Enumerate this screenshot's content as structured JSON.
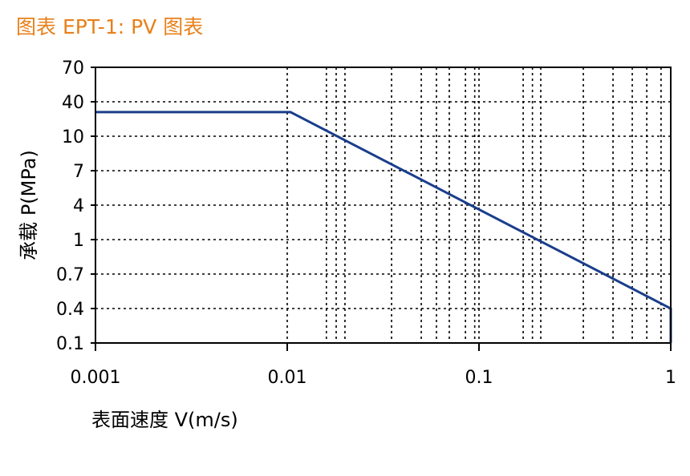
{
  "chart_data": {
    "type": "line",
    "title": "图表 EPT-1: PV 图表",
    "xlabel": "表面速度 V(m/s)",
    "ylabel": "承载 P(MPa)",
    "x_scale": "log",
    "y_scale": "categorical-ticks",
    "xlim": [
      0.001,
      1
    ],
    "x_ticks": [
      "0.001",
      "0.01",
      "0.1",
      "1"
    ],
    "x_ticks_values": [
      0.001,
      0.01,
      0.1,
      1
    ],
    "y_ticks": [
      "0.1",
      "0.4",
      "0.7",
      "1",
      "4",
      "7",
      "10",
      "40",
      "70"
    ],
    "x_minor_gridlines": [
      0.016,
      0.018,
      0.02,
      0.035,
      0.05,
      0.06,
      0.07,
      0.085,
      0.095,
      0.17,
      0.19,
      0.21,
      0.35,
      0.5,
      0.63,
      0.75,
      0.89
    ],
    "grid": true,
    "grid_style": "dotted",
    "line_color": "#1a3e8c",
    "series": [
      {
        "x": [
          0.001,
          0.0104,
          1.0,
          1.0
        ],
        "y": [
          31,
          31,
          0.4,
          0.1
        ]
      }
    ]
  }
}
